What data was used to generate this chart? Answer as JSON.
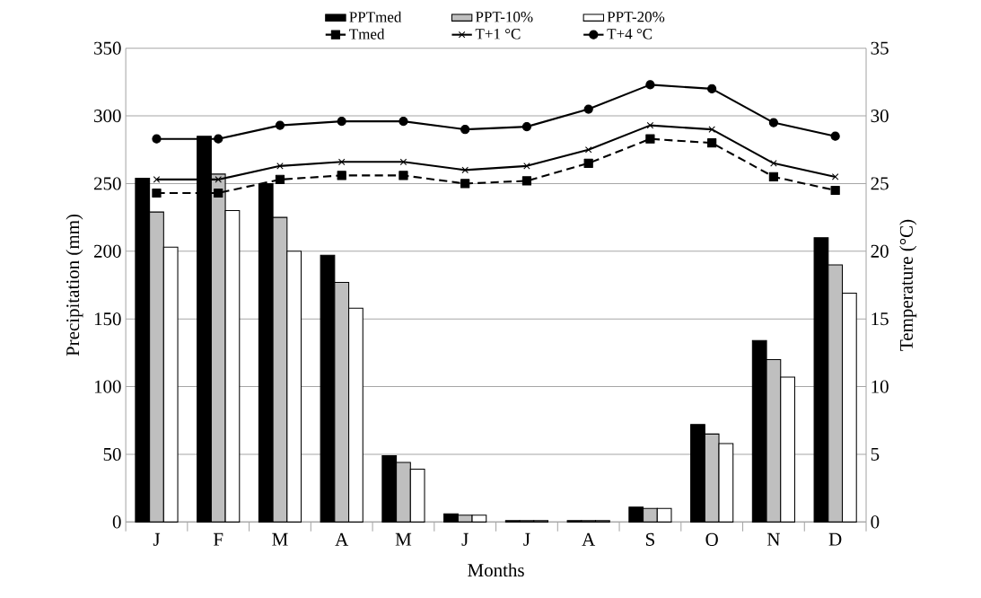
{
  "chart_data": {
    "type": "bar",
    "xlabel": "Months",
    "ylabel": "Precipitation (mm)",
    "y2label": "Temperature (°C)",
    "categories": [
      "J",
      "F",
      "M",
      "A",
      "M",
      "J",
      "J",
      "A",
      "S",
      "O",
      "N",
      "D"
    ],
    "ylim": [
      0,
      350
    ],
    "yticks": [
      0,
      50,
      100,
      150,
      200,
      250,
      300,
      350
    ],
    "y2lim": [
      0,
      35
    ],
    "y2ticks": [
      0,
      5,
      10,
      15,
      20,
      25,
      30,
      35
    ],
    "grid": "y",
    "legend": "top",
    "series": [
      {
        "name": "PPTmed",
        "type": "bar",
        "color": "#000000",
        "values": [
          254,
          285,
          250,
          197,
          49,
          6,
          1,
          1,
          11,
          72,
          134,
          210
        ]
      },
      {
        "name": "PPT-10%",
        "type": "bar",
        "color": "#bfbfbf",
        "values": [
          229,
          257,
          225,
          177,
          44,
          5,
          1,
          1,
          10,
          65,
          120,
          190
        ]
      },
      {
        "name": "PPT-20%",
        "type": "bar",
        "color": "#ffffff",
        "values": [
          203,
          230,
          200,
          158,
          39,
          5,
          1,
          1,
          10,
          58,
          107,
          169
        ]
      },
      {
        "name": "Tmed",
        "type": "line",
        "axis": "y2",
        "color": "#000000",
        "marker": "square",
        "line_style": "dashed",
        "values": [
          24.3,
          24.3,
          25.3,
          25.6,
          25.6,
          25.0,
          25.2,
          26.5,
          28.3,
          28.0,
          25.5,
          24.5
        ]
      },
      {
        "name": "T+1 °C",
        "type": "line",
        "axis": "y2",
        "color": "#000000",
        "marker": "cross",
        "line_style": "solid",
        "values": [
          25.3,
          25.3,
          26.3,
          26.6,
          26.6,
          26.0,
          26.3,
          27.5,
          29.3,
          29.0,
          26.5,
          25.5
        ]
      },
      {
        "name": "T+4 °C",
        "type": "line",
        "axis": "y2",
        "color": "#000000",
        "marker": "circle",
        "line_style": "solid",
        "values": [
          28.3,
          28.3,
          29.3,
          29.6,
          29.6,
          29.0,
          29.2,
          30.5,
          32.3,
          32.0,
          29.5,
          28.5
        ]
      }
    ]
  }
}
